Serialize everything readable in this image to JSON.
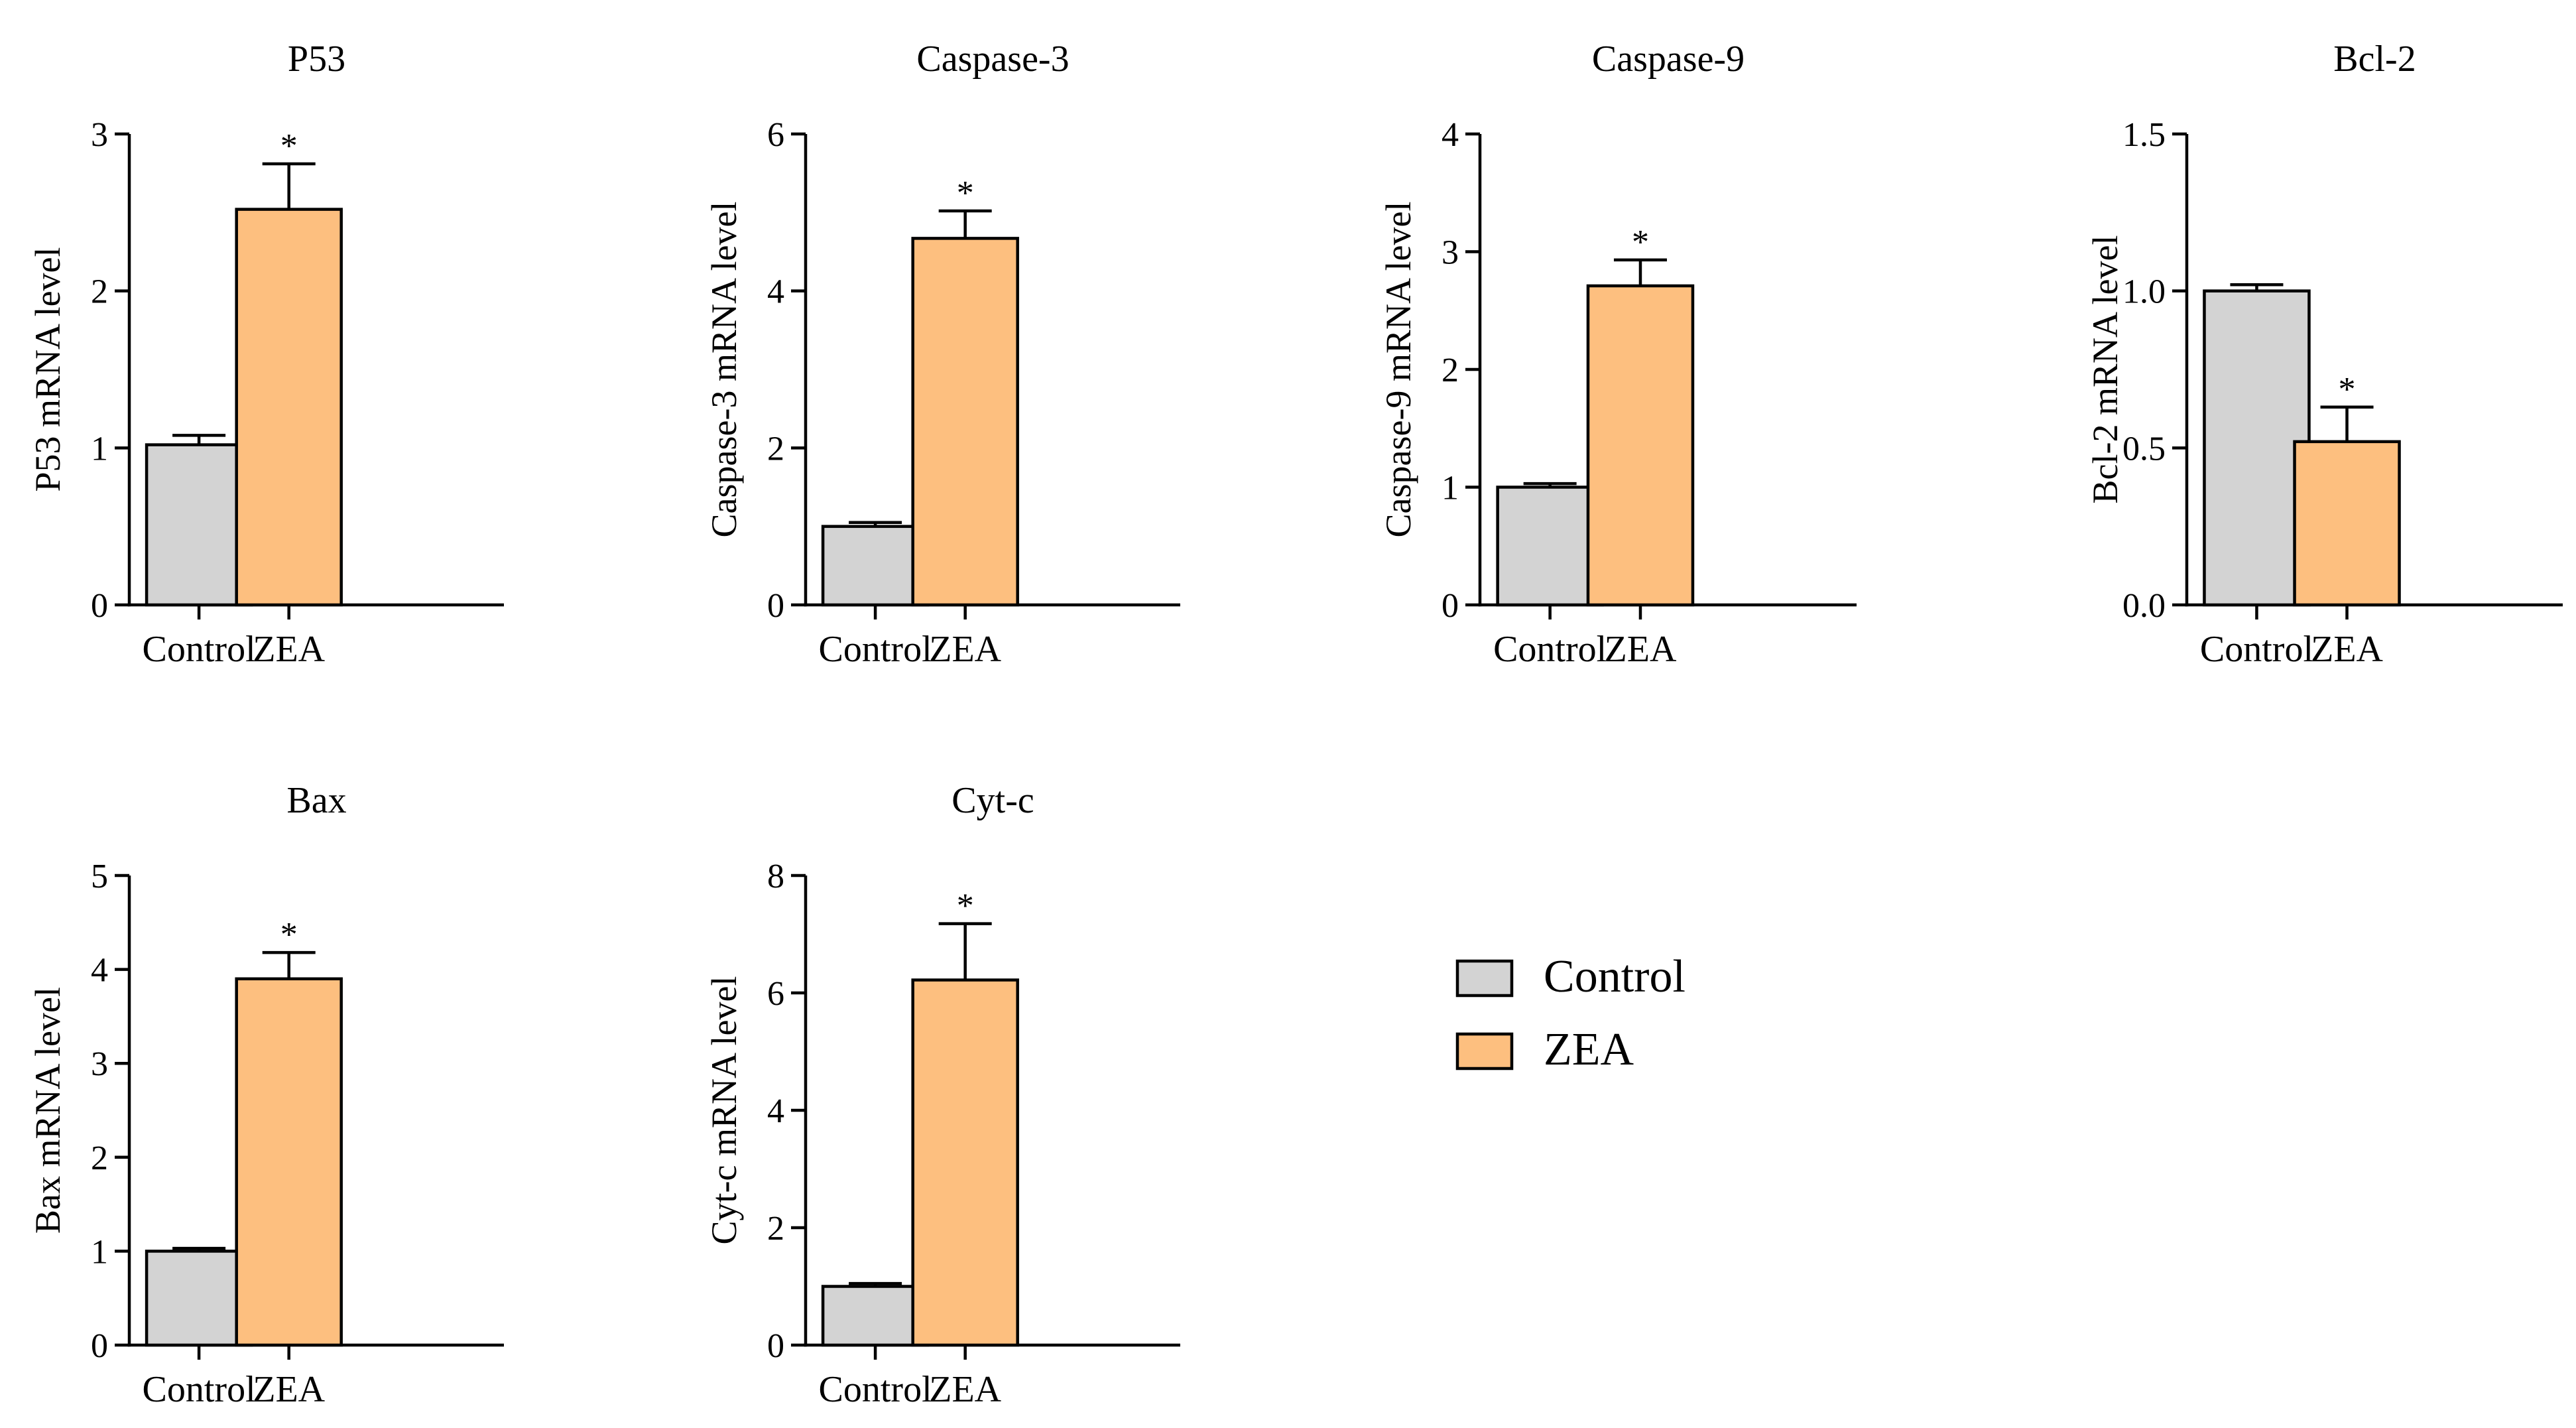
{
  "legend": {
    "items": [
      {
        "label": "Control",
        "color": "#d3d3d3"
      },
      {
        "label": "ZEA",
        "color": "#fdbf7f"
      }
    ]
  },
  "chart_data": [
    {
      "type": "bar",
      "title": "P53",
      "ylabel": "P53 mRNA level",
      "categories": [
        "Control",
        "ZEA"
      ],
      "values": [
        1.02,
        2.52
      ],
      "errors": [
        0.06,
        0.29
      ],
      "ylim": [
        0,
        3
      ],
      "yticks": [
        "0",
        "1",
        "2",
        "3"
      ],
      "significance": [
        "",
        "*"
      ]
    },
    {
      "type": "bar",
      "title": "Caspase-3",
      "ylabel": "Caspase-3 mRNA level",
      "categories": [
        "Control",
        "ZEA"
      ],
      "values": [
        1.0,
        4.67
      ],
      "errors": [
        0.05,
        0.35
      ],
      "ylim": [
        0,
        6
      ],
      "yticks": [
        "0",
        "2",
        "4",
        "6"
      ],
      "significance": [
        "",
        "*"
      ]
    },
    {
      "type": "bar",
      "title": "Caspase-9",
      "ylabel": "Caspase-9 mRNA level",
      "categories": [
        "Control",
        "ZEA"
      ],
      "values": [
        1.0,
        2.71
      ],
      "errors": [
        0.03,
        0.22
      ],
      "ylim": [
        0,
        4
      ],
      "yticks": [
        "0",
        "1",
        "2",
        "3",
        "4"
      ],
      "significance": [
        "",
        "*"
      ]
    },
    {
      "type": "bar",
      "title": "Bcl-2",
      "ylabel": "Bcl-2 mRNA level",
      "categories": [
        "Control",
        "ZEA"
      ],
      "values": [
        1.0,
        0.52
      ],
      "errors": [
        0.02,
        0.11
      ],
      "ylim": [
        0,
        1.5
      ],
      "yticks": [
        "0.0",
        "0.5",
        "1.0",
        "1.5"
      ],
      "significance": [
        "",
        "*"
      ]
    },
    {
      "type": "bar",
      "title": "Bax",
      "ylabel": "Bax mRNA level",
      "categories": [
        "Control",
        "ZEA"
      ],
      "values": [
        1.0,
        3.9
      ],
      "errors": [
        0.03,
        0.28
      ],
      "ylim": [
        0,
        5
      ],
      "yticks": [
        "0",
        "1",
        "2",
        "3",
        "4",
        "5"
      ],
      "significance": [
        "",
        "*"
      ]
    },
    {
      "type": "bar",
      "title": "Cyt-c",
      "ylabel": "Cyt-c mRNA level",
      "categories": [
        "Control",
        "ZEA"
      ],
      "values": [
        1.0,
        6.22
      ],
      "errors": [
        0.05,
        0.96
      ],
      "ylim": [
        0,
        8
      ],
      "yticks": [
        "0",
        "2",
        "4",
        "6",
        "8"
      ],
      "significance": [
        "",
        "*"
      ]
    }
  ]
}
